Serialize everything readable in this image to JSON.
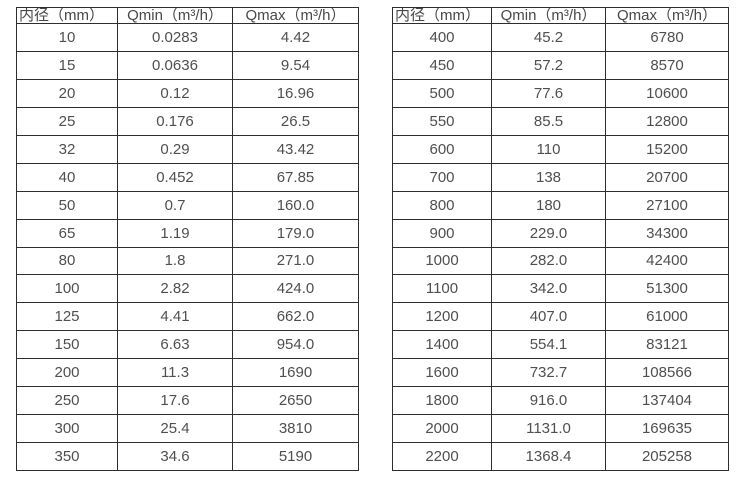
{
  "colors": {
    "background": "#ffffff",
    "border": "#2e2e2e",
    "text": "#4f4f4f"
  },
  "tables": [
    {
      "name": "small-diameter-flow-table",
      "headers": [
        "内径（mm）",
        "Qmin（m³/h）",
        "Qmax（m³/h）"
      ],
      "rows": [
        [
          "10",
          "0.0283",
          "4.42"
        ],
        [
          "15",
          "0.0636",
          "9.54"
        ],
        [
          "20",
          "0.12",
          "16.96"
        ],
        [
          "25",
          "0.176",
          "26.5"
        ],
        [
          "32",
          "0.29",
          "43.42"
        ],
        [
          "40",
          "0.452",
          "67.85"
        ],
        [
          "50",
          "0.7",
          "160.0"
        ],
        [
          "65",
          "1.19",
          "179.0"
        ],
        [
          "80",
          "1.8",
          "271.0"
        ],
        [
          "100",
          "2.82",
          "424.0"
        ],
        [
          "125",
          "4.41",
          "662.0"
        ],
        [
          "150",
          "6.63",
          "954.0"
        ],
        [
          "200",
          "11.3",
          "1690"
        ],
        [
          "250",
          "17.6",
          "2650"
        ],
        [
          "300",
          "25.4",
          "3810"
        ],
        [
          "350",
          "34.6",
          "5190"
        ]
      ]
    },
    {
      "name": "large-diameter-flow-table",
      "headers": [
        "内径（mm）",
        "Qmin（m³/h）",
        "Qmax（m³/h）"
      ],
      "rows": [
        [
          "400",
          "45.2",
          "6780"
        ],
        [
          "450",
          "57.2",
          "8570"
        ],
        [
          "500",
          "77.6",
          "10600"
        ],
        [
          "550",
          "85.5",
          "12800"
        ],
        [
          "600",
          "110",
          "15200"
        ],
        [
          "700",
          "138",
          "20700"
        ],
        [
          "800",
          "180",
          "27100"
        ],
        [
          "900",
          "229.0",
          "34300"
        ],
        [
          "1000",
          "282.0",
          "42400"
        ],
        [
          "1100",
          "342.0",
          "51300"
        ],
        [
          "1200",
          "407.0",
          "61000"
        ],
        [
          "1400",
          "554.1",
          "83121"
        ],
        [
          "1600",
          "732.7",
          "108566"
        ],
        [
          "1800",
          "916.0",
          "137404"
        ],
        [
          "2000",
          "1131.0",
          "169635"
        ],
        [
          "2200",
          "1368.4",
          "205258"
        ]
      ]
    }
  ]
}
